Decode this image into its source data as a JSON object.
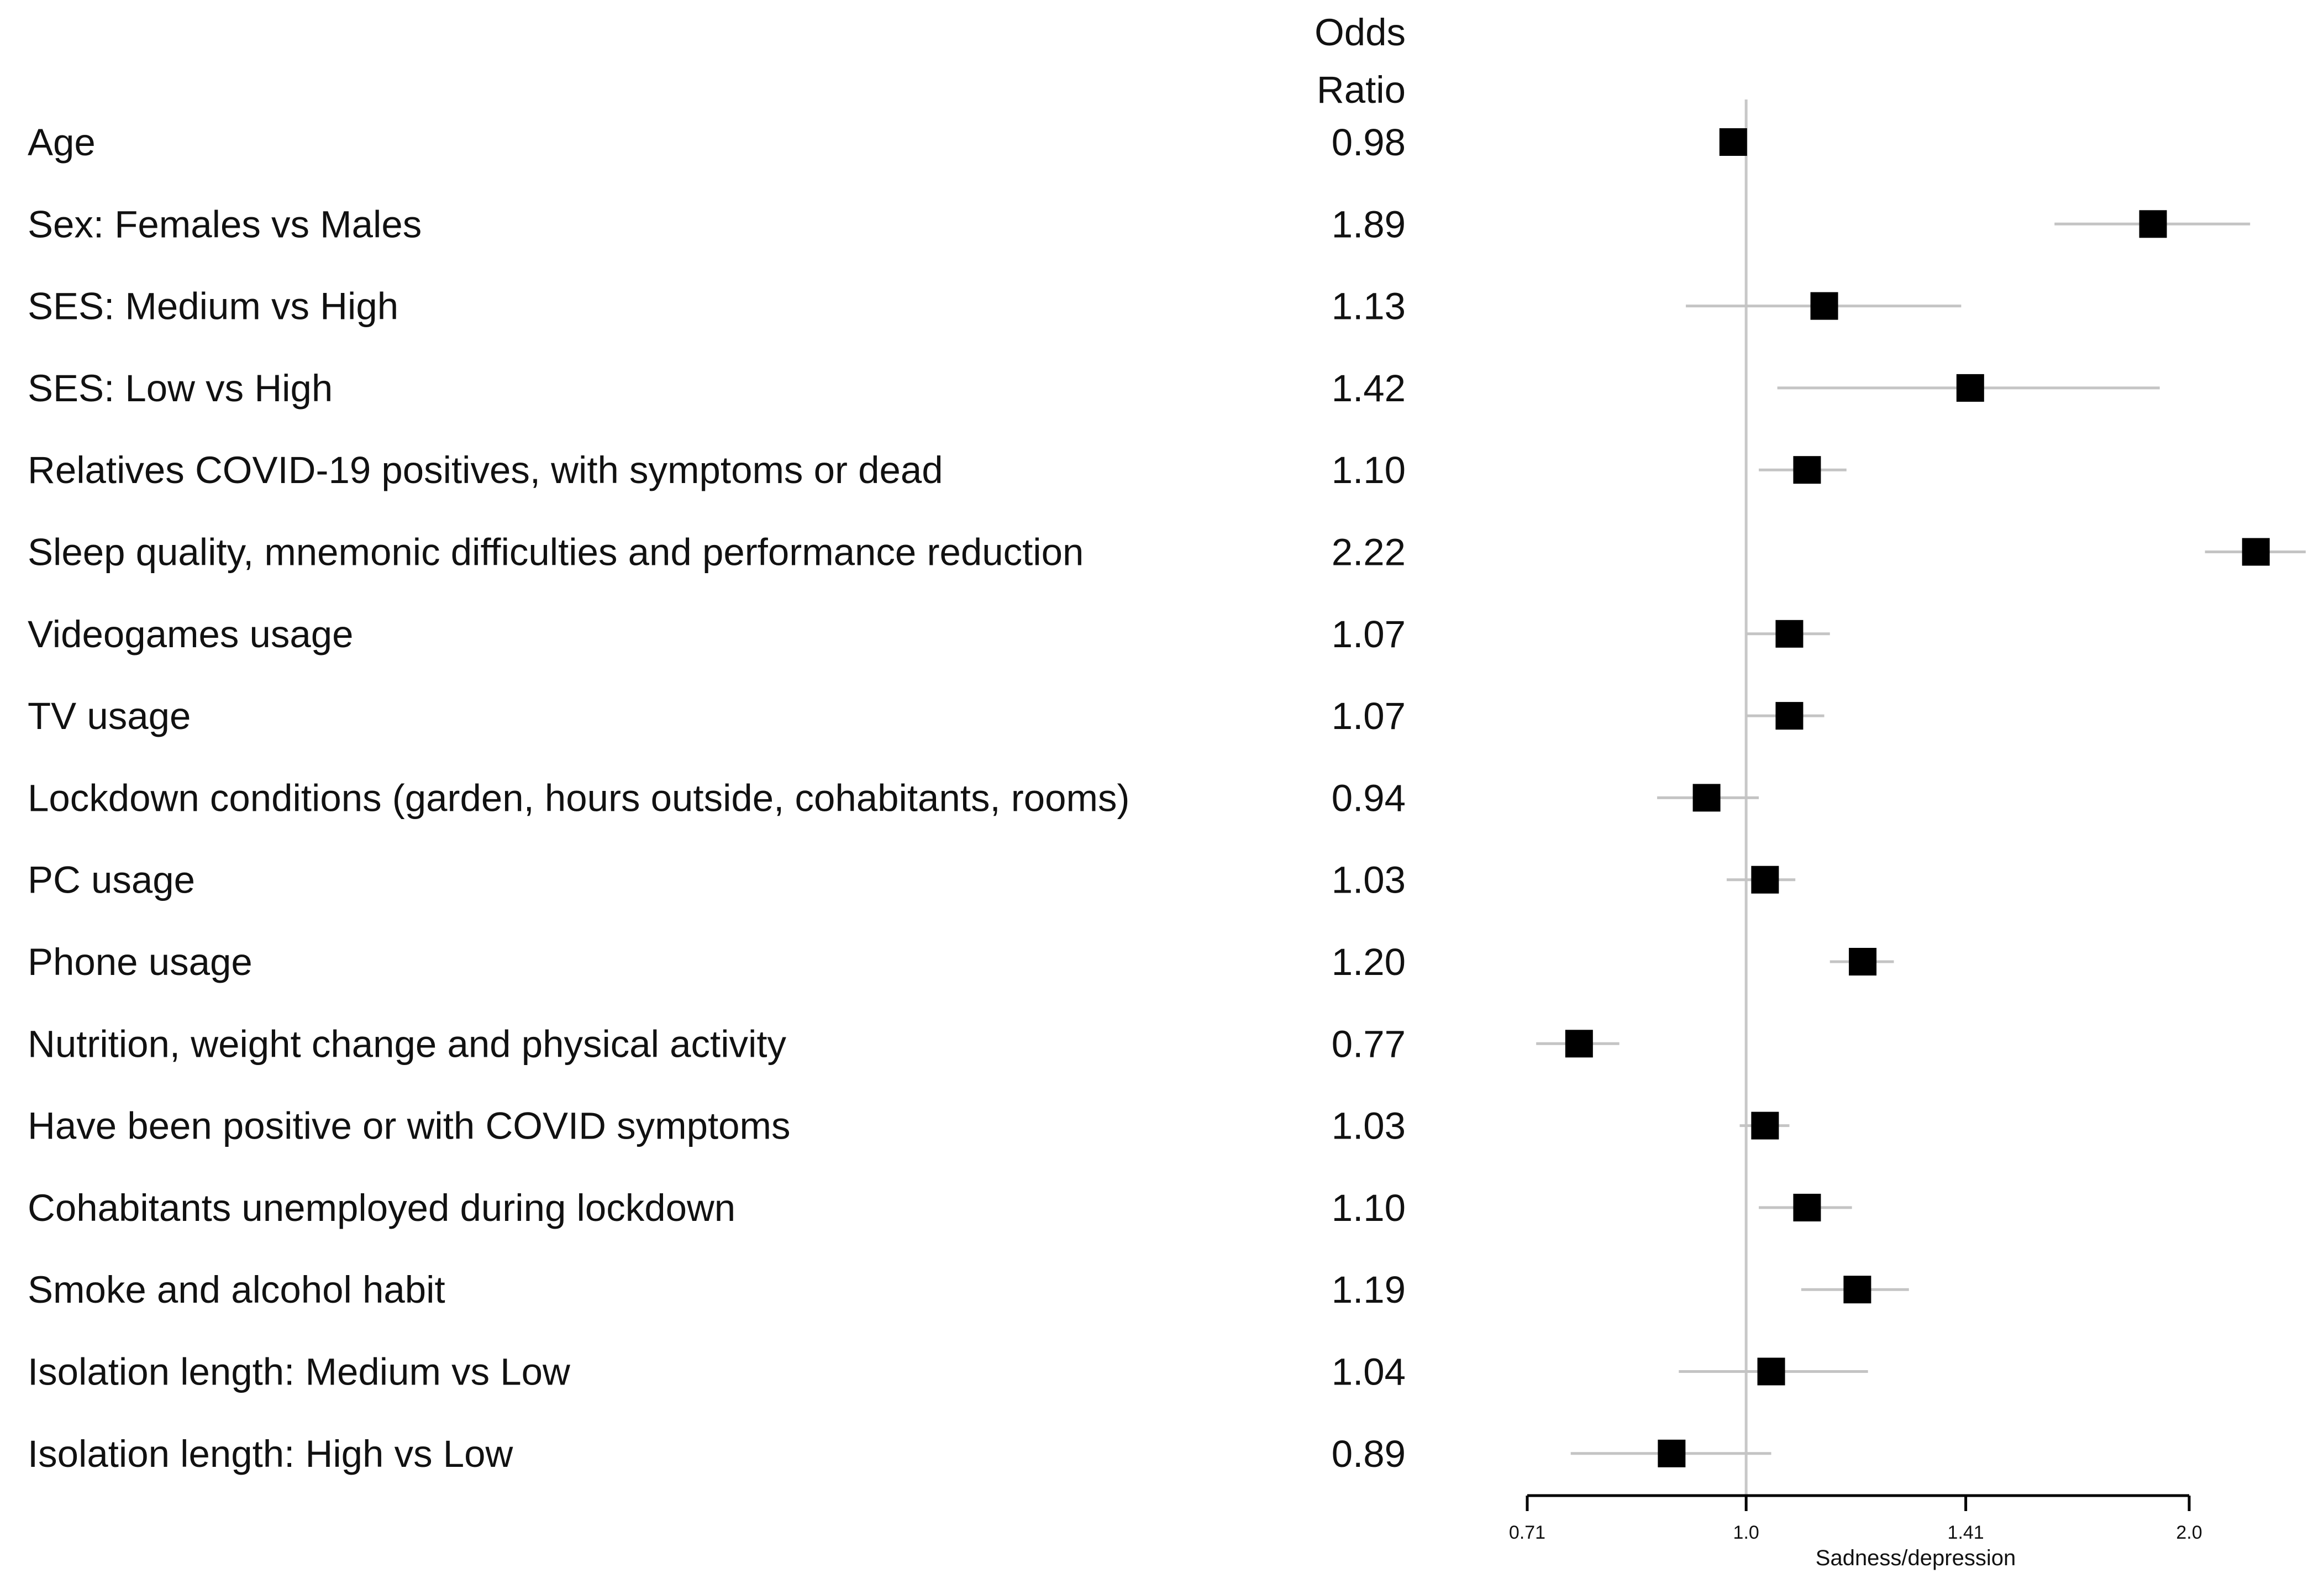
{
  "chart_data": {
    "type": "forest",
    "header": {
      "line1": "Odds",
      "line2": "Ratio"
    },
    "xlabel": "Sadness/depression",
    "scale": "log",
    "xlim": [
      0.71,
      2.0
    ],
    "reference_line": 1.0,
    "ticks": [
      {
        "value": 0.71,
        "label": "0.71"
      },
      {
        "value": 1.0,
        "label": "1.0"
      },
      {
        "value": 1.41,
        "label": "1.41"
      },
      {
        "value": 2.0,
        "label": "2.0"
      }
    ],
    "rows": [
      {
        "label": "Age",
        "or_text": "0.98",
        "or": 0.98,
        "lo": 0.98,
        "hi": 0.98
      },
      {
        "label": "Sex: Females vs Males",
        "or_text": "1.89",
        "or": 1.89,
        "lo": 1.62,
        "hi": 2.2
      },
      {
        "label": "SES: Medium vs High",
        "or_text": "1.13",
        "or": 1.13,
        "lo": 0.91,
        "hi": 1.4
      },
      {
        "label": "SES: Low vs High",
        "or_text": "1.42",
        "or": 1.42,
        "lo": 1.05,
        "hi": 1.91
      },
      {
        "label": "Relatives COVID-19 positives, with symptoms or dead",
        "or_text": "1.10",
        "or": 1.1,
        "lo": 1.02,
        "hi": 1.17
      },
      {
        "label": "Sleep quality, mnemonic difficulties and performance reduction",
        "or_text": "2.22",
        "or": 2.22,
        "lo": 2.05,
        "hi": 2.4
      },
      {
        "label": "Videogames usage",
        "or_text": "1.07",
        "or": 1.07,
        "lo": 1.0,
        "hi": 1.14
      },
      {
        "label": "TV usage",
        "or_text": "1.07",
        "or": 1.07,
        "lo": 1.0,
        "hi": 1.13
      },
      {
        "label": "Lockdown conditions (garden, hours outside, cohabitants, rooms)",
        "or_text": "0.94",
        "or": 0.94,
        "lo": 0.87,
        "hi": 1.02
      },
      {
        "label": "PC usage",
        "or_text": "1.03",
        "or": 1.03,
        "lo": 0.97,
        "hi": 1.08
      },
      {
        "label": "Phone usage",
        "or_text": "1.20",
        "or": 1.2,
        "lo": 1.14,
        "hi": 1.26
      },
      {
        "label": "Nutrition, weight change and physical activity",
        "or_text": "0.77",
        "or": 0.77,
        "lo": 0.72,
        "hi": 0.82
      },
      {
        "label": "Have been positive or with COVID symptoms",
        "or_text": "1.03",
        "or": 1.03,
        "lo": 0.99,
        "hi": 1.07
      },
      {
        "label": "Cohabitants unemployed during lockdown",
        "or_text": "1.10",
        "or": 1.1,
        "lo": 1.02,
        "hi": 1.18
      },
      {
        "label": "Smoke and alcohol habit",
        "or_text": "1.19",
        "or": 1.19,
        "lo": 1.09,
        "hi": 1.29
      },
      {
        "label": "Isolation length: Medium vs Low",
        "or_text": "1.04",
        "or": 1.04,
        "lo": 0.9,
        "hi": 1.21
      },
      {
        "label": "Isolation length: High vs Low",
        "or_text": "0.89",
        "or": 0.89,
        "lo": 0.76,
        "hi": 1.04
      }
    ]
  }
}
